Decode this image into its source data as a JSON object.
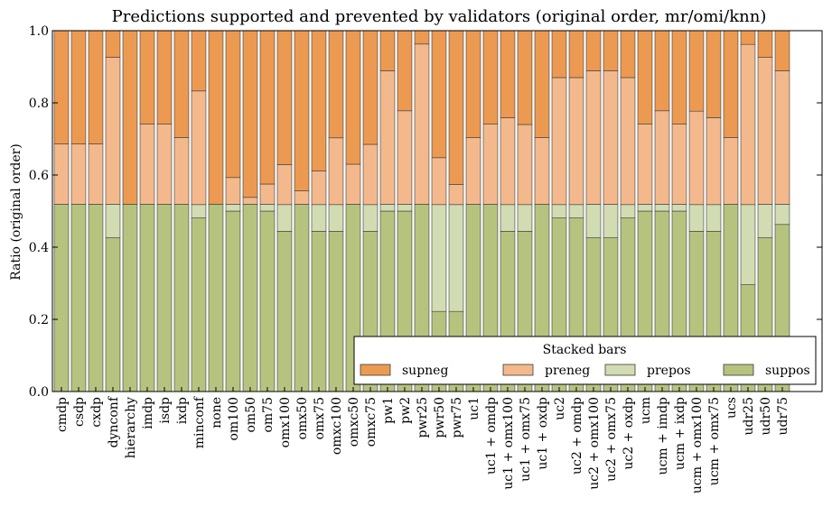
{
  "chart_data": {
    "type": "bar",
    "stacked": true,
    "title": "Predictions supported and prevented by validators (original order, mr/omi/knn)",
    "xlabel": "",
    "ylabel": "Ratio (original order)",
    "ylim": [
      0,
      1.0
    ],
    "yticks": [
      "0.0",
      "0.2",
      "0.4",
      "0.6",
      "0.8",
      "1.0"
    ],
    "grid": false,
    "legend": {
      "title": "Stacked bars",
      "placement": "lower-right",
      "entries": [
        "supneg",
        "preneg",
        "prepos",
        "suppos"
      ]
    },
    "categories": [
      "cmdp",
      "csdp",
      "cxdp",
      "dynconf",
      "hierarchy",
      "imdp",
      "isdp",
      "ixdp",
      "minconf",
      "none",
      "om100",
      "om50",
      "om75",
      "omx100",
      "omx50",
      "omx75",
      "omxc100",
      "omxc50",
      "omxc75",
      "pw1",
      "pw2",
      "pwr25",
      "pwr50",
      "pwr75",
      "uc1",
      "uc1 + omdp",
      "uc1 + omx100",
      "uc1 + omx75",
      "uc1 + oxdp",
      "uc2",
      "uc2 + omdp",
      "uc2 + omx100",
      "uc2 + omx75",
      "uc2 + oxdp",
      "ucm",
      "ucm + imdp",
      "ucm + ixdp",
      "ucm + omx100",
      "ucm + omx75",
      "ucs",
      "udr25",
      "udr50",
      "udr75"
    ],
    "series": [
      {
        "name": "suppos",
        "color": "#b5c37f",
        "values": [
          0.519,
          0.519,
          0.519,
          0.426,
          0.519,
          0.519,
          0.519,
          0.519,
          0.481,
          0.519,
          0.5,
          0.519,
          0.5,
          0.444,
          0.519,
          0.444,
          0.444,
          0.519,
          0.444,
          0.5,
          0.5,
          0.519,
          0.222,
          0.222,
          0.519,
          0.519,
          0.444,
          0.444,
          0.519,
          0.481,
          0.481,
          0.426,
          0.426,
          0.481,
          0.5,
          0.5,
          0.5,
          0.444,
          0.444,
          0.519,
          0.296,
          0.426,
          0.463
        ]
      },
      {
        "name": "prepos",
        "color": "#d2dcb2",
        "values": [
          0.0,
          0.0,
          0.0,
          0.093,
          0.0,
          0.0,
          0.0,
          0.0,
          0.037,
          0.0,
          0.019,
          0.0,
          0.019,
          0.074,
          0.0,
          0.074,
          0.074,
          0.0,
          0.074,
          0.019,
          0.019,
          0.0,
          0.296,
          0.296,
          0.0,
          0.0,
          0.074,
          0.074,
          0.0,
          0.037,
          0.037,
          0.093,
          0.093,
          0.037,
          0.019,
          0.019,
          0.019,
          0.074,
          0.074,
          0.0,
          0.222,
          0.093,
          0.056
        ]
      },
      {
        "name": "preneg",
        "color": "#f3b98c",
        "values": [
          0.167,
          0.167,
          0.167,
          0.407,
          0.0,
          0.222,
          0.222,
          0.185,
          0.315,
          0.0,
          0.074,
          0.019,
          0.056,
          0.111,
          0.037,
          0.093,
          0.185,
          0.111,
          0.167,
          0.37,
          0.259,
          0.444,
          0.13,
          0.056,
          0.185,
          0.222,
          0.241,
          0.222,
          0.185,
          0.352,
          0.352,
          0.37,
          0.37,
          0.352,
          0.222,
          0.259,
          0.222,
          0.259,
          0.241,
          0.185,
          0.444,
          0.407,
          0.37
        ]
      },
      {
        "name": "supneg",
        "color": "#ec9a51",
        "values": [
          0.314,
          0.314,
          0.314,
          0.074,
          0.481,
          0.259,
          0.259,
          0.296,
          0.167,
          0.481,
          0.407,
          0.462,
          0.425,
          0.371,
          0.444,
          0.389,
          0.297,
          0.37,
          0.315,
          0.111,
          0.222,
          0.037,
          0.352,
          0.426,
          0.296,
          0.259,
          0.241,
          0.26,
          0.296,
          0.13,
          0.13,
          0.111,
          0.111,
          0.13,
          0.259,
          0.222,
          0.259,
          0.223,
          0.241,
          0.296,
          0.038,
          0.074,
          0.111
        ]
      }
    ]
  }
}
